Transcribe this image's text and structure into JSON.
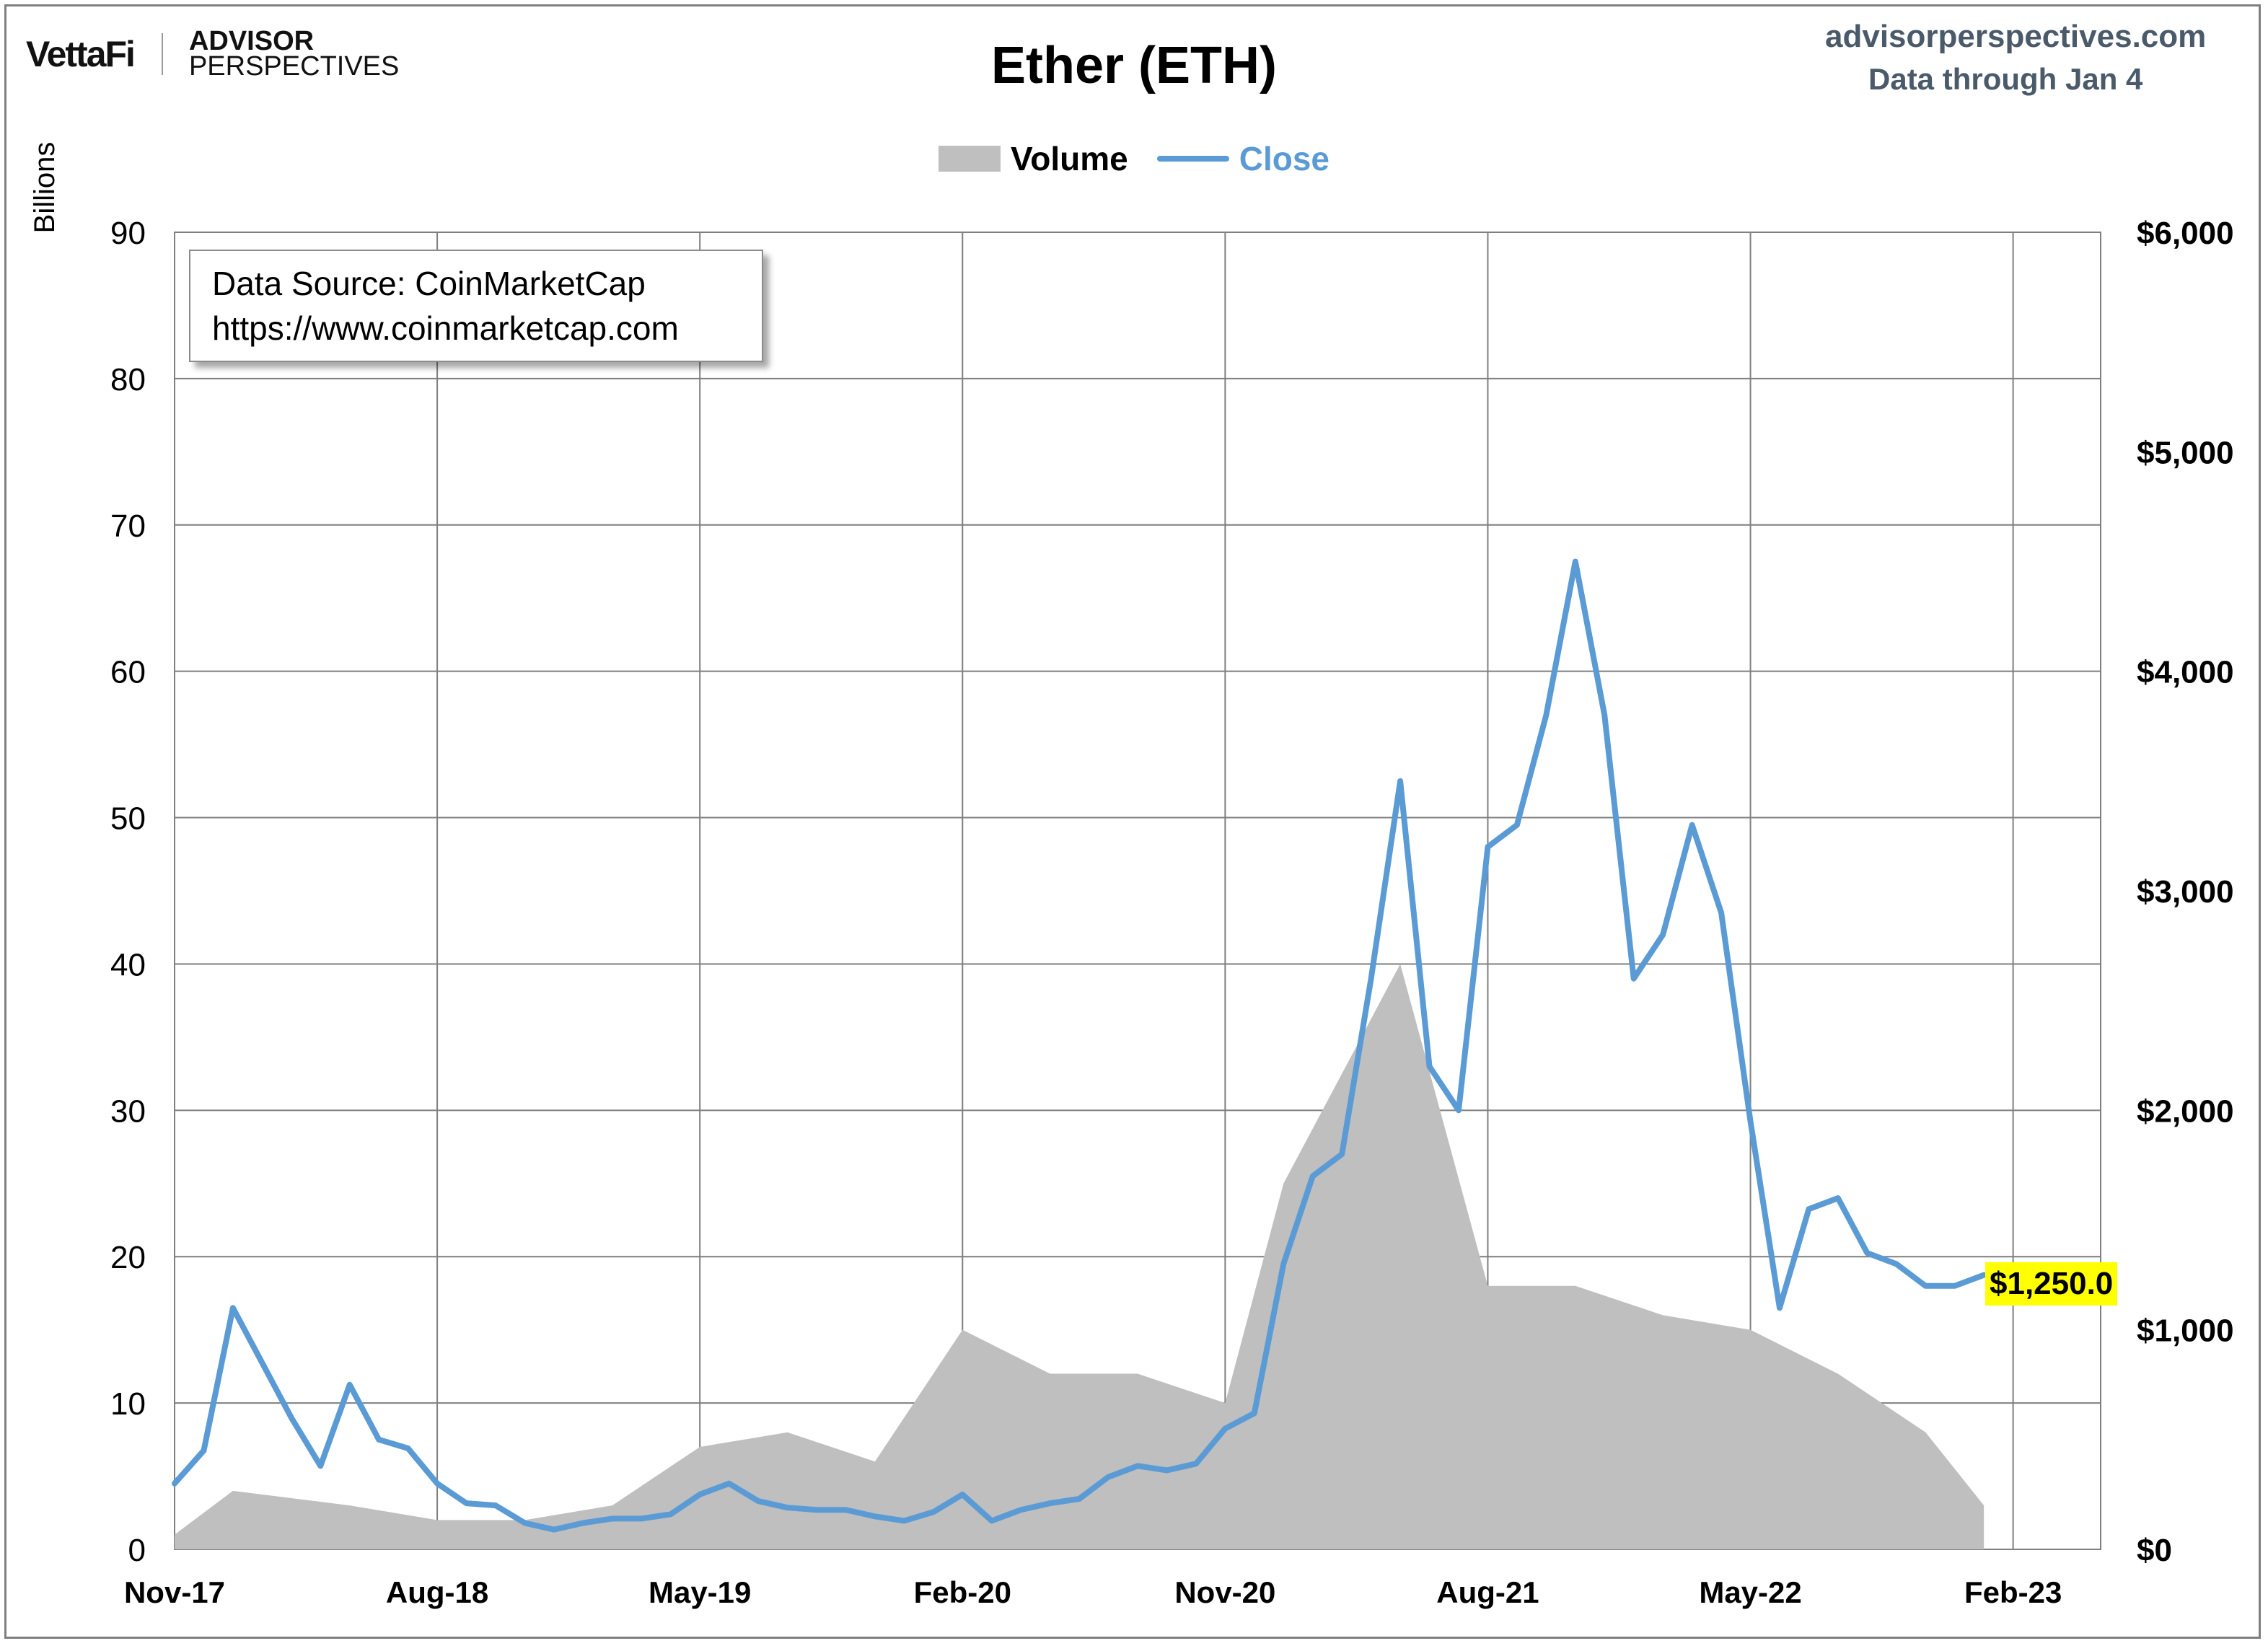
{
  "brand": {
    "vettafi": "VettaFi",
    "advisor": "ADVISOR",
    "perspectives": "PERSPECTIVES"
  },
  "header": {
    "title": "Ether (ETH)",
    "site": "advisorperspectives.com",
    "data_through": "Data through Jan 4"
  },
  "legend": {
    "volume_label": "Volume",
    "close_label": "Close"
  },
  "source_box": {
    "line1": "Data Source: CoinMarketCap",
    "line2": "https://www.coinmarketcap.com"
  },
  "last_value_label": "$1,250.0",
  "colors": {
    "volume_fill": "#bfbfbf",
    "close_line": "#5b9bd5",
    "grid": "#7f7f7f",
    "highlight": "#ffff00",
    "site_text": "#4a5a6a"
  },
  "chart_data": {
    "type": "line",
    "title": "Ether (ETH)",
    "y_left_label": "Billions",
    "y_left_ticks": [
      "0",
      "10",
      "20",
      "30",
      "40",
      "50",
      "60",
      "70",
      "80",
      "90"
    ],
    "y_left_range": [
      0,
      90
    ],
    "y_right_ticks": [
      "$0",
      "$1,000",
      "$2,000",
      "$3,000",
      "$4,000",
      "$5,000",
      "$6,000"
    ],
    "y_right_range": [
      0,
      6000
    ],
    "x_ticks": [
      "Nov-17",
      "Aug-18",
      "May-19",
      "Feb-20",
      "Nov-20",
      "Aug-21",
      "May-22",
      "Feb-23"
    ],
    "x_range": [
      "2017-11",
      "2023-05"
    ],
    "grid": true,
    "legend_position": "top-center",
    "series": [
      {
        "name": "Close",
        "axis": "right",
        "x": [
          "2017-11",
          "2017-12",
          "2018-01",
          "2018-02",
          "2018-03",
          "2018-04",
          "2018-05",
          "2018-06",
          "2018-07",
          "2018-08",
          "2018-09",
          "2018-10",
          "2018-11",
          "2018-12",
          "2019-01",
          "2019-02",
          "2019-03",
          "2019-04",
          "2019-05",
          "2019-06",
          "2019-07",
          "2019-08",
          "2019-09",
          "2019-10",
          "2019-11",
          "2019-12",
          "2020-01",
          "2020-02",
          "2020-03",
          "2020-04",
          "2020-05",
          "2020-06",
          "2020-07",
          "2020-08",
          "2020-09",
          "2020-10",
          "2020-11",
          "2020-12",
          "2021-01",
          "2021-02",
          "2021-03",
          "2021-04",
          "2021-05",
          "2021-06",
          "2021-07",
          "2021-08",
          "2021-09",
          "2021-10",
          "2021-11",
          "2021-12",
          "2022-01",
          "2022-02",
          "2022-03",
          "2022-04",
          "2022-05",
          "2022-06",
          "2022-07",
          "2022-08",
          "2022-09",
          "2022-10",
          "2022-11",
          "2022-12",
          "2023-01"
        ],
        "values": [
          300,
          450,
          1100,
          850,
          600,
          380,
          750,
          500,
          460,
          300,
          210,
          200,
          120,
          90,
          120,
          140,
          140,
          160,
          250,
          300,
          220,
          190,
          180,
          180,
          150,
          130,
          170,
          250,
          130,
          180,
          210,
          230,
          330,
          380,
          360,
          390,
          550,
          620,
          1300,
          1700,
          1800,
          2600,
          3500,
          2200,
          2000,
          3200,
          3300,
          3800,
          4500,
          3800,
          2600,
          2800,
          3300,
          2900,
          1950,
          1100,
          1550,
          1600,
          1350,
          1300,
          1200,
          1200,
          1250
        ]
      },
      {
        "name": "Volume",
        "axis": "left",
        "unit": "Billions",
        "x": [
          "2017-11",
          "2018-01",
          "2018-05",
          "2018-08",
          "2018-11",
          "2019-02",
          "2019-05",
          "2019-08",
          "2019-11",
          "2020-02",
          "2020-05",
          "2020-08",
          "2020-11",
          "2021-01",
          "2021-05",
          "2021-08",
          "2021-11",
          "2022-02",
          "2022-05",
          "2022-08",
          "2022-11",
          "2023-01"
        ],
        "values": [
          1,
          4,
          3,
          2,
          2,
          3,
          7,
          8,
          6,
          15,
          12,
          12,
          10,
          25,
          40,
          18,
          18,
          16,
          15,
          12,
          8,
          3
        ]
      }
    ]
  }
}
